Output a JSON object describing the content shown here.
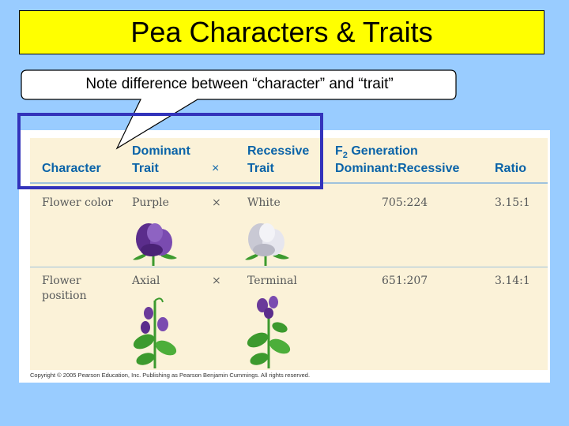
{
  "title": "Pea Characters & Traits",
  "note": "Note difference between “character” and “trait”",
  "table": {
    "headers": {
      "character": "Character",
      "dominant_line1": "Dominant",
      "dominant_line2": "Trait",
      "cross": "×",
      "recessive_line1": "Recessive",
      "recessive_line2": "Trait",
      "f2_prefix": "F",
      "f2_sub": "2",
      "f2_suffix": " Generation",
      "f2_line2": "Dominant:Recessive",
      "ratio": "Ratio"
    },
    "rows": [
      {
        "character_line1": "Flower color",
        "character_line2": "",
        "dominant": "Purple",
        "cross": "×",
        "recessive": "White",
        "f2": "705:224",
        "ratio": "3.15:1"
      },
      {
        "character_line1": "Flower",
        "character_line2": "position",
        "dominant": "Axial",
        "cross": "×",
        "recessive": "Terminal",
        "f2": "651:207",
        "ratio": "3.14:1"
      }
    ]
  },
  "copyright": "Copyright © 2005 Pearson Education, Inc. Publishing as Pearson Benjamin Cummings. All rights reserved.",
  "colors": {
    "background": "#99ccff",
    "title_fill": "#ffff00",
    "header_text": "#0a63a8",
    "highlight_border": "#3333bb",
    "purple_flower": "#6a3a9a",
    "white_flower": "#dcdce6",
    "leaf_green": "#3c9a2e"
  },
  "illustrations": {
    "row1_dominant": "purple-pea-flower",
    "row1_recessive": "white-pea-flower",
    "row2_dominant": "axial-flowers-plant",
    "row2_recessive": "terminal-flowers-plant"
  }
}
